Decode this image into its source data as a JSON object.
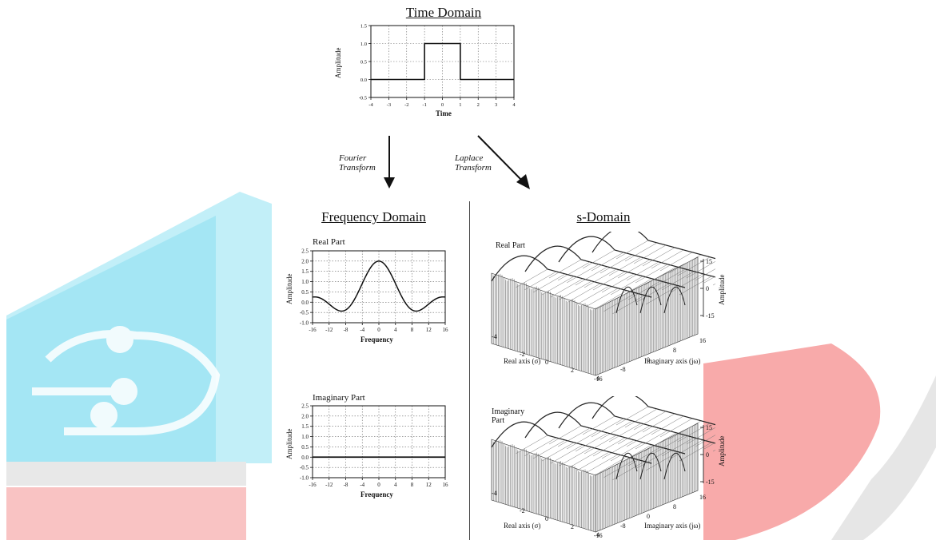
{
  "watermark": {
    "colors": {
      "blue": "#5fd3ea",
      "red": "#f37c7c",
      "gray": "#d8d8d8"
    }
  },
  "time_domain": {
    "title": "Time Domain",
    "ylabel": "Amplitude",
    "xlabel": "Time",
    "chart_data": {
      "type": "line",
      "title": "Time Domain",
      "xlabel": "Time",
      "ylabel": "Amplitude",
      "xlim": [
        -4,
        4
      ],
      "ylim": [
        -0.5,
        1.5
      ],
      "x_ticks": [
        -4,
        -3,
        -2,
        -1,
        0,
        1,
        2,
        3,
        4
      ],
      "y_ticks": [
        "1.5",
        "1.0",
        "0.5",
        "0.0",
        "-0.5"
      ],
      "x": [
        -4,
        -1,
        -1,
        1,
        1,
        4
      ],
      "y": [
        0,
        0,
        1,
        1,
        0,
        0
      ],
      "grid": true
    }
  },
  "arrows": {
    "fourier": [
      "Fourier",
      "Transform"
    ],
    "laplace": [
      "Laplace",
      "Transform"
    ]
  },
  "frequency_domain": {
    "title": "Frequency Domain",
    "real": {
      "label": "Real Part",
      "ylabel": "Amplitude",
      "xlabel": "Frequency",
      "chart_data": {
        "type": "line",
        "title": "Real Part",
        "xlabel": "Frequency",
        "ylabel": "Amplitude",
        "xlim": [
          -16,
          16
        ],
        "ylim": [
          -1.0,
          2.5
        ],
        "x_ticks": [
          -16,
          -12,
          -8,
          -4,
          0,
          4,
          8,
          12,
          16
        ],
        "y_ticks": [
          "2.5",
          "2.0",
          "1.5",
          "1.0",
          "0.5",
          "0.0",
          "-0.5",
          "-1.0"
        ],
        "function": "2*sin(x/2)/(x/2)",
        "x": [
          -16,
          -12,
          -10,
          -8,
          -6,
          -4,
          -2,
          0,
          2,
          4,
          6,
          8,
          10,
          12,
          16
        ],
        "y": [
          0.12,
          0.08,
          -0.02,
          -0.15,
          -0.1,
          0.15,
          1.35,
          2.0,
          1.35,
          0.15,
          -0.1,
          -0.15,
          -0.02,
          0.08,
          0.12
        ],
        "grid": true
      }
    },
    "imag": {
      "label": "Imaginary Part",
      "ylabel": "Amplitude",
      "xlabel": "Frequency",
      "chart_data": {
        "type": "line",
        "title": "Imaginary Part",
        "xlabel": "Frequency",
        "ylabel": "Amplitude",
        "xlim": [
          -16,
          16
        ],
        "ylim": [
          -1.0,
          2.5
        ],
        "x_ticks": [
          -16,
          -12,
          -8,
          -4,
          0,
          4,
          8,
          12,
          16
        ],
        "y_ticks": [
          "2.5",
          "2.0",
          "1.5",
          "1.0",
          "0.5",
          "0.0",
          "-0.5",
          "-1.0"
        ],
        "x": [
          -16,
          16
        ],
        "y": [
          0,
          0
        ],
        "grid": true
      }
    }
  },
  "s_domain": {
    "title": "s-Domain",
    "real": {
      "label": "Real Part",
      "z_ticks": [
        "15",
        "0",
        "-15"
      ],
      "zlabel": "Amplitude",
      "real_ticks": [
        "-4",
        "-2",
        "0",
        "2",
        "4"
      ],
      "imag_ticks": [
        "16",
        "8",
        "0",
        "-8",
        "-16"
      ],
      "real_axis_label": "Real axis (σ)",
      "imag_axis_label": "Imaginary axis (jω)"
    },
    "imag": {
      "label_lines": [
        "Imaginary",
        "Part"
      ],
      "z_ticks": [
        "15",
        "0",
        "-15"
      ],
      "zlabel": "Amplitude",
      "real_ticks": [
        "-4",
        "-2",
        "0",
        "2",
        "4"
      ],
      "imag_ticks": [
        "16",
        "8",
        "0",
        "-8",
        "-16"
      ],
      "real_axis_label": "Real axis (σ)",
      "imag_axis_label": "Imaginary axis (jω)"
    }
  }
}
